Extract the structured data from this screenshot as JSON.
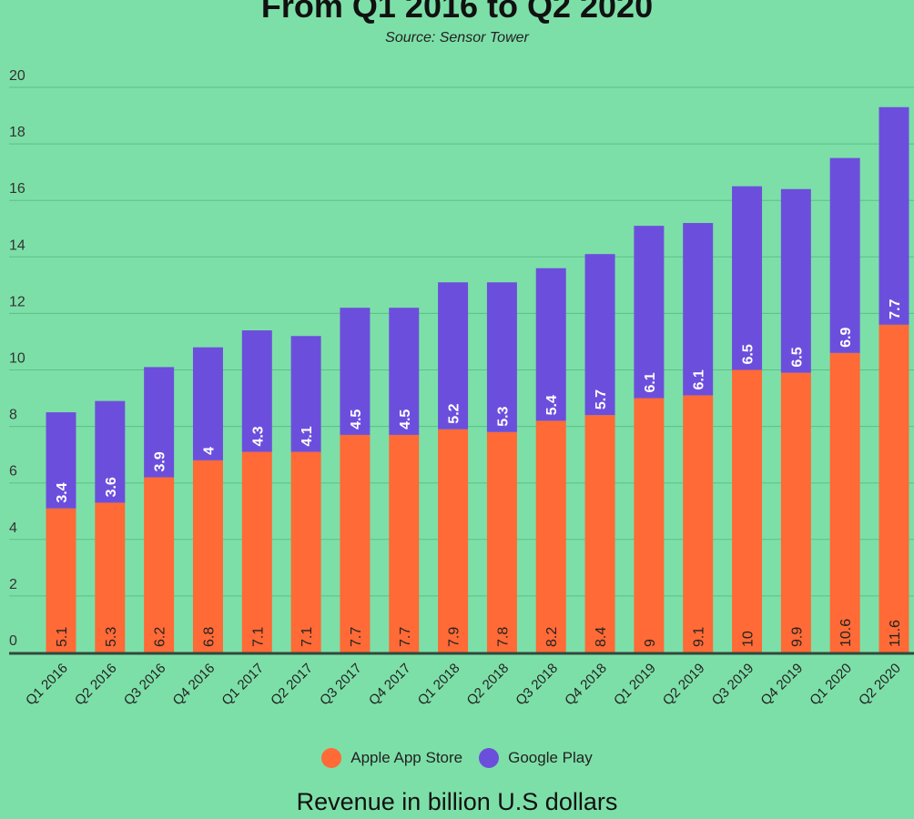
{
  "chart_data": {
    "type": "bar",
    "stacked": true,
    "title": "From Q1 2016 to Q2 2020",
    "subtitle": "Source: Sensor Tower",
    "xlabel": "Revenue in billion U.S dollars",
    "ylabel": "",
    "ylim": [
      0,
      20
    ],
    "yticks": [
      0,
      2,
      4,
      6,
      8,
      10,
      12,
      14,
      16,
      18,
      20
    ],
    "grid": true,
    "legend_position": "bottom",
    "categories": [
      "Q1 2016",
      "Q2 2016",
      "Q3 2016",
      "Q4 2016",
      "Q1 2017",
      "Q2 2017",
      "Q3 2017",
      "Q4 2017",
      "Q1 2018",
      "Q2 2018",
      "Q3 2018",
      "Q4 2018",
      "Q1 2019",
      "Q2 2019",
      "Q3 2019",
      "Q4 2019",
      "Q1 2020",
      "Q2 2020"
    ],
    "series": [
      {
        "name": "Apple App Store",
        "color": "#ff6a36",
        "values": [
          5.1,
          5.3,
          6.2,
          6.8,
          7.1,
          7.1,
          7.7,
          7.7,
          7.9,
          7.8,
          8.2,
          8.4,
          9,
          9.1,
          10,
          9.9,
          10.6,
          11.6
        ]
      },
      {
        "name": "Google Play",
        "color": "#6b4fdc",
        "values": [
          3.4,
          3.6,
          3.9,
          4,
          4.3,
          4.1,
          4.5,
          4.5,
          5.2,
          5.3,
          5.4,
          5.7,
          6.1,
          6.1,
          6.5,
          6.5,
          6.9,
          7.7
        ]
      }
    ]
  }
}
